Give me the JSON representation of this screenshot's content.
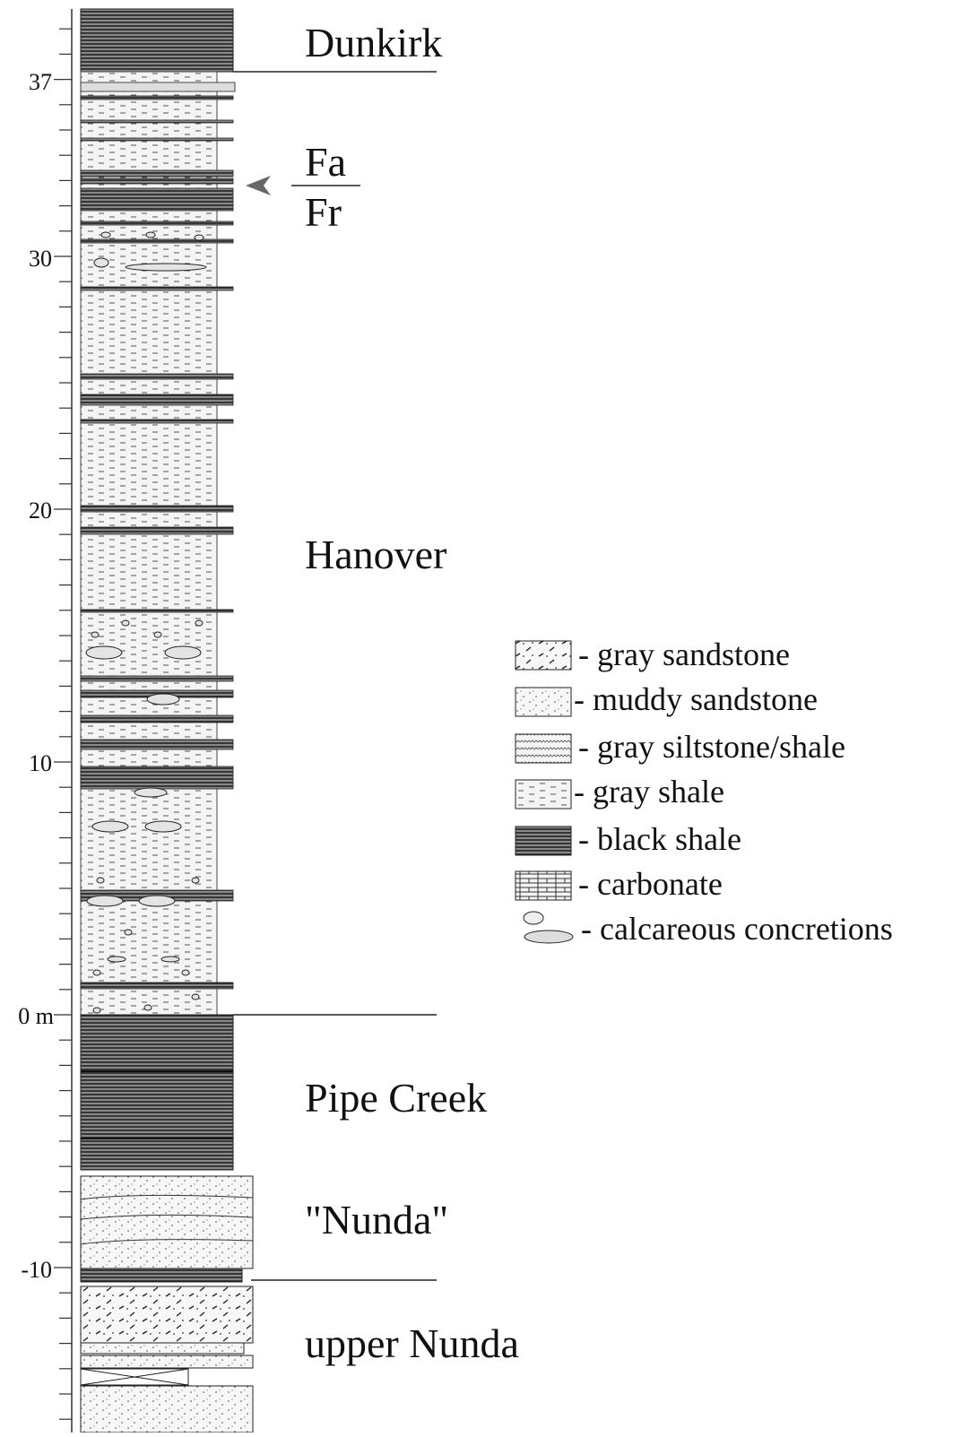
{
  "scale": {
    "labels": [
      "37",
      "30",
      "20",
      "10",
      "0 m",
      "-10"
    ]
  },
  "formations": [
    "Dunkirk",
    "Hanover",
    "Pipe Creek",
    "\"Nunda\"",
    "upper Nunda"
  ],
  "boundary": {
    "upper": "Fa",
    "lower": "Fr"
  },
  "legend": [
    "- gray sandstone",
    "- muddy sandstone",
    " - gray siltstone/shale",
    "- gray shale",
    " - black shale",
    "- carbonate",
    "- calcareous concretions"
  ]
}
